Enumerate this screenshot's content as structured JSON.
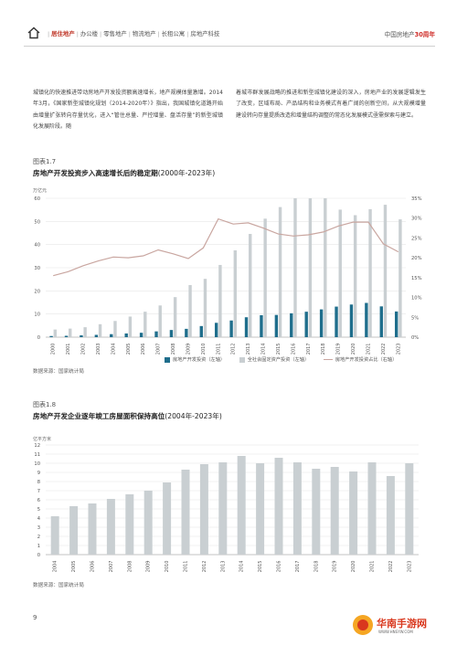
{
  "header": {
    "nav": [
      "居住地产",
      "办公楼",
      "零售地产",
      "物流地产",
      "长租公寓",
      "房地产科技"
    ],
    "active_index": 0,
    "brand_prefix": "中国房地产",
    "brand_highlight": "30周年"
  },
  "body_text": {
    "left": "城镇化的快速推进带动房地产开发投资额高速增长，地产规模体量激增。2014年3月，《国家新型城镇化规划（2014-2020年）》指出，我国城镇化道路开始由增量扩张转向存量优化，进入“管住总量、严控增量、盘活存量”的新型城镇化发展阶段。随",
    "right": "着城市群发展战略的推进和新型城镇化建设的深入，房地产业的发展逻辑发生了改变，区域布局、产品结构和业务模式有着广阔的创新空间，从大规模增量建设转向存量提质改造和增量结构调整的常态化发展模式亟需探索与建立。"
  },
  "figure1": {
    "label": "图表1.7",
    "title": "房地产开发投资步入高速增长后的稳定期",
    "period": "(2000年-2023年)",
    "source": "数据来源：国家统计局",
    "legend": [
      "房地产开发投资（左轴）",
      "全社会固定资产投资（左轴）",
      "房地产开发投资占比（右轴）"
    ]
  },
  "figure2": {
    "label": "图表1.8",
    "title": "房地产开发企业逐年竣工房屋面积保持高位",
    "period": "(2004年-2023年)",
    "source": "数据来源：国家统计局"
  },
  "chart_data": [
    {
      "type": "bar",
      "ylabel_left": "万亿元",
      "ylim_left": [
        0,
        60
      ],
      "yticks_left": [
        0,
        10,
        20,
        30,
        40,
        50,
        60
      ],
      "ylim_right": [
        0,
        35
      ],
      "yticks_right": [
        "0%",
        "5%",
        "10%",
        "15%",
        "20%",
        "25%",
        "30%",
        "35%"
      ],
      "categories": [
        "2000",
        "2001",
        "2002",
        "2003",
        "2004",
        "2005",
        "2006",
        "2007",
        "2008",
        "2009",
        "2010",
        "2011",
        "2012",
        "2013",
        "2014",
        "2015",
        "2016",
        "2017",
        "2018",
        "2019",
        "2020",
        "2021",
        "2022",
        "2023"
      ],
      "series": [
        {
          "name": "房地产开发投资（左轴）",
          "color": "#1f6e8c",
          "values": [
            0.5,
            0.6,
            0.8,
            1.0,
            1.3,
            1.6,
            1.9,
            2.5,
            3.1,
            3.6,
            4.8,
            6.2,
            7.2,
            8.6,
            9.5,
            9.6,
            10.3,
            11.0,
            12.0,
            13.2,
            14.1,
            14.8,
            13.3,
            11.1
          ]
        },
        {
          "name": "全社会固定资产投资（左轴）",
          "color": "#c9cfd2",
          "values": [
            3.3,
            3.7,
            4.3,
            5.6,
            7.0,
            8.9,
            11.0,
            13.7,
            17.3,
            22.5,
            25.2,
            31.2,
            37.5,
            44.6,
            51.2,
            56.2,
            60.6,
            64.1,
            64.6,
            55.1,
            52.7,
            55.3,
            57.2,
            50.9
          ]
        },
        {
          "name": "房地产开发投资占比（右轴）",
          "color": "#c9a6a0",
          "type": "line",
          "values": [
            15.5,
            16.5,
            18.0,
            19.2,
            20.2,
            20.0,
            20.5,
            22.0,
            21.0,
            19.8,
            22.5,
            29.8,
            28.5,
            28.8,
            27.5,
            26.0,
            25.5,
            25.8,
            26.5,
            28.0,
            29.0,
            29.0,
            23.5,
            21.5
          ]
        }
      ]
    },
    {
      "type": "bar",
      "ylabel": "亿平方米",
      "ylim": [
        0,
        12
      ],
      "yticks": [
        0,
        1,
        2,
        3,
        4,
        5,
        6,
        7,
        8,
        9,
        10,
        11,
        12
      ],
      "categories": [
        "2004",
        "2005",
        "2006",
        "2007",
        "2008",
        "2009",
        "2010",
        "2011",
        "2012",
        "2013",
        "2014",
        "2015",
        "2016",
        "2017",
        "2018",
        "2019",
        "2020",
        "2021",
        "2022",
        "2023"
      ],
      "series": [
        {
          "name": "",
          "color": "#c9cfd2",
          "values": [
            4.2,
            5.3,
            5.6,
            6.1,
            6.6,
            7.0,
            7.9,
            9.3,
            9.9,
            10.1,
            10.8,
            10.0,
            10.6,
            10.1,
            9.4,
            9.6,
            9.1,
            10.1,
            8.6,
            10.0
          ]
        }
      ]
    }
  ]
}
